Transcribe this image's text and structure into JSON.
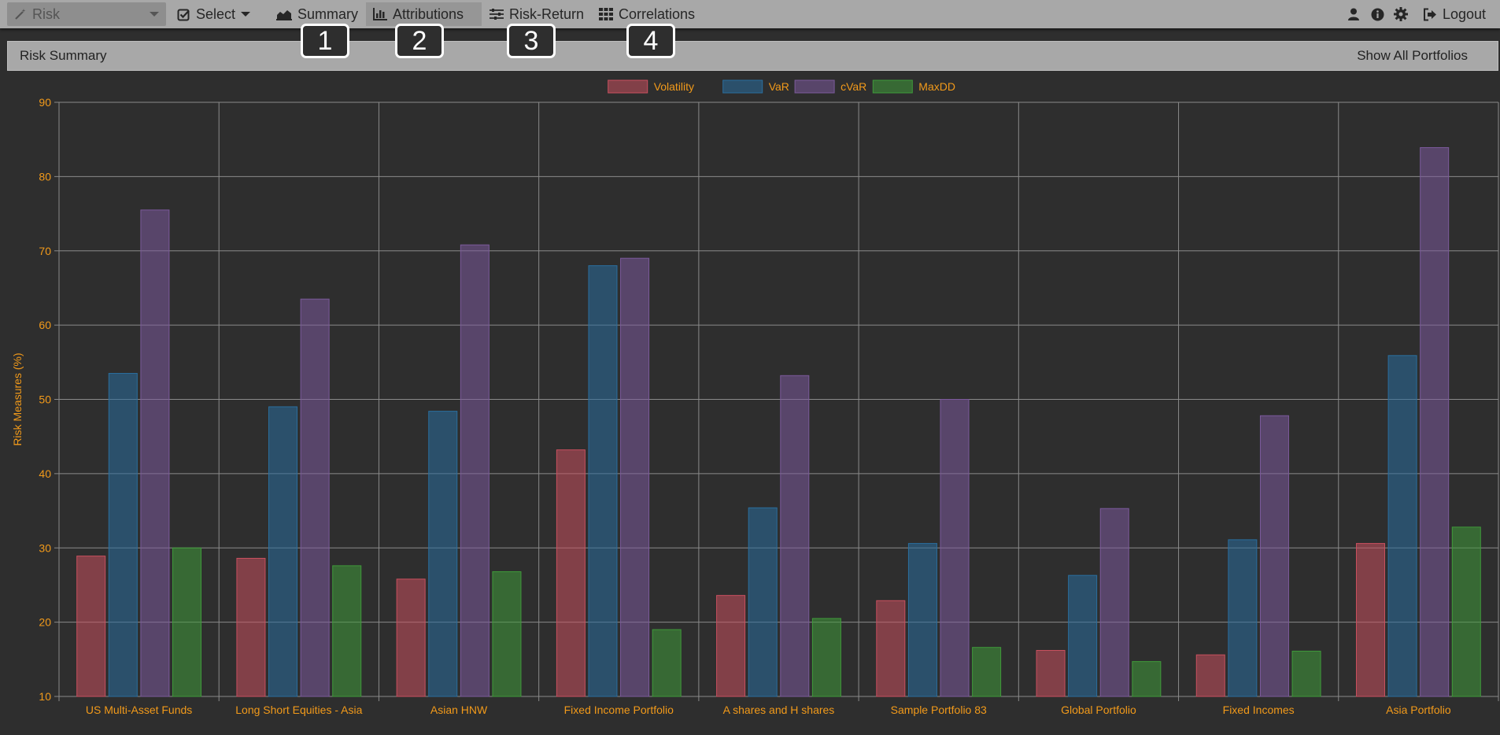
{
  "navbar": {
    "app_label": "Risk",
    "select_label": "Select",
    "summary_label": "Summary",
    "attributions_label": "Attributions",
    "risk_return_label": "Risk-Return",
    "correlations_label": "Correlations",
    "logout_label": "Logout",
    "icons": [
      "magic-wand-icon",
      "checkbox-icon",
      "area-chart-icon",
      "bar-chart-icon",
      "sliders-icon",
      "grid-icon",
      "user-icon",
      "info-icon",
      "gear-icon",
      "logout-icon"
    ]
  },
  "callouts": [
    "1",
    "2",
    "3",
    "4"
  ],
  "panel": {
    "title": "Risk Summary",
    "show_all_label": "Show All Portfolios"
  },
  "colors": {
    "accent_text": "#f29a1a",
    "volatility": "#c9505f",
    "var": "#2a6e9e",
    "cvar": "#7c5a9c",
    "maxdd": "#3f9a3a"
  },
  "chart_data": {
    "type": "bar",
    "ylabel": "Risk Measures (%)",
    "xlabel": "",
    "ylim": [
      10,
      90
    ],
    "yticks": [
      10,
      20,
      30,
      40,
      50,
      60,
      70,
      80,
      90
    ],
    "grid": true,
    "legend_position": "top-center",
    "categories": [
      "US Multi-Asset Funds",
      "Long Short Equities - Asia",
      "Asian HNW",
      "Fixed Income Portfolio",
      "A shares and H shares",
      "Sample Portfolio 83",
      "Global Portfolio",
      "Fixed Incomes",
      "Asia Portfolio"
    ],
    "series": [
      {
        "name": "Volatility",
        "color_key": "volatility",
        "values": [
          28.9,
          28.6,
          25.8,
          43.2,
          23.6,
          22.9,
          16.2,
          15.6,
          30.6
        ]
      },
      {
        "name": "VaR",
        "color_key": "var",
        "values": [
          53.5,
          49.0,
          48.4,
          68.0,
          35.4,
          30.6,
          26.3,
          31.1,
          55.9
        ]
      },
      {
        "name": "cVaR",
        "color_key": "cvar",
        "values": [
          75.5,
          63.5,
          70.8,
          69.0,
          53.2,
          50.0,
          35.3,
          47.8,
          83.9
        ]
      },
      {
        "name": "MaxDD",
        "color_key": "maxdd",
        "values": [
          30.0,
          27.6,
          26.8,
          19.0,
          20.5,
          16.6,
          14.7,
          16.1,
          32.8
        ]
      }
    ]
  }
}
